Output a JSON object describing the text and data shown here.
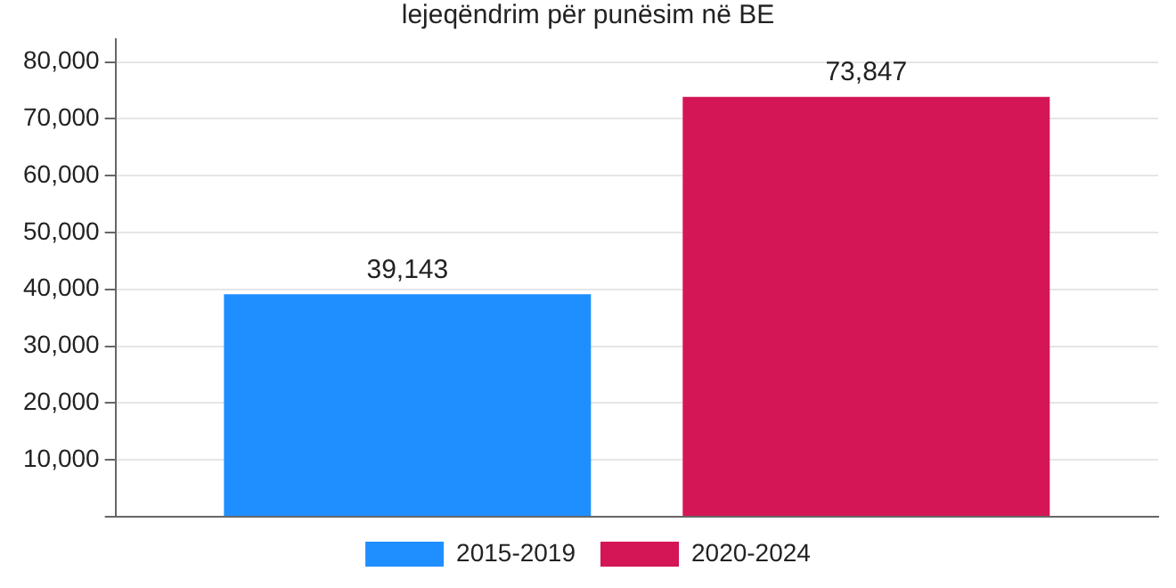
{
  "chart_data": {
    "type": "bar",
    "title": "lejeqëndrim për punësim në BE",
    "categories": [
      null
    ],
    "series": [
      {
        "name": "2015-2019",
        "color": "#1f8fff",
        "values": [
          39143
        ],
        "value_labels": [
          "39,143"
        ]
      },
      {
        "name": "2020-2024",
        "color": "#d41556",
        "values": [
          73847
        ],
        "value_labels": [
          "73,847"
        ]
      }
    ],
    "ylim": [
      0,
      84000
    ],
    "yticks": [
      {
        "value": 0,
        "label": null
      },
      {
        "value": 10000,
        "label": "10,000"
      },
      {
        "value": 20000,
        "label": "20,000"
      },
      {
        "value": 30000,
        "label": "30,000"
      },
      {
        "value": 40000,
        "label": "40,000"
      },
      {
        "value": 50000,
        "label": "50,000"
      },
      {
        "value": 60000,
        "label": "60,000"
      },
      {
        "value": 70000,
        "label": "70,000"
      },
      {
        "value": 80000,
        "label": "80,000"
      }
    ],
    "grid": "y",
    "legend": "bottom",
    "tick_labels": "y"
  }
}
